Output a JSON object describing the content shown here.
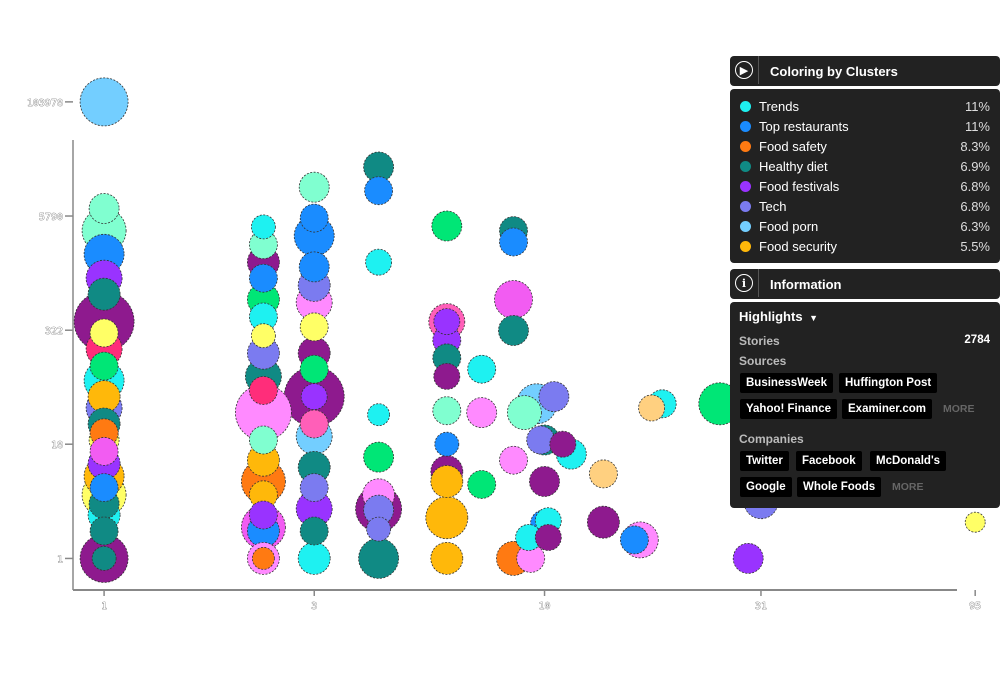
{
  "legend_panel": {
    "title": "Coloring by Clusters",
    "items": [
      {
        "label": "Trends",
        "pct": "11%",
        "color": "#1ef1f1"
      },
      {
        "label": "Top restaurants",
        "pct": "11%",
        "color": "#1a8cff"
      },
      {
        "label": "Food safety",
        "pct": "8.3%",
        "color": "#ff7a12"
      },
      {
        "label": "Healthy diet",
        "pct": "6.9%",
        "color": "#108a84"
      },
      {
        "label": "Food festivals",
        "pct": "6.8%",
        "color": "#9933ff"
      },
      {
        "label": "Tech",
        "pct": "6.8%",
        "color": "#7b7bf0"
      },
      {
        "label": "Food porn",
        "pct": "6.3%",
        "color": "#73ceff"
      },
      {
        "label": "Food security",
        "pct": "5.5%",
        "color": "#ffb80a"
      }
    ]
  },
  "info_panel": {
    "title": "Information",
    "highlights_label": "Highlights",
    "stories_label": "Stories",
    "stories_count": "2784",
    "sources_label": "Sources",
    "sources": [
      "BusinessWeek",
      "Huffington Post",
      "Yahoo! Finance",
      "Examiner.com"
    ],
    "sources_more": "MORE",
    "companies_label": "Companies",
    "companies": [
      "Twitter",
      "Facebook",
      "McDonald's",
      "Google",
      "Whole Foods"
    ],
    "companies_more": "MORE"
  },
  "chart_data": {
    "type": "scatter",
    "title": "",
    "xlabel": "",
    "ylabel": "",
    "x_scale": "log",
    "y_scale": "log",
    "x_ticks": [
      "1",
      "3",
      "10",
      "31",
      "95"
    ],
    "y_ticks": [
      "1",
      "18",
      "322",
      "5790",
      "103978"
    ],
    "xlim": [
      0.85,
      100
    ],
    "ylim": [
      0.45,
      300000
    ],
    "extra_colors": [
      "#8e1a8e",
      "#ff5fb8",
      "#00e676",
      "#f25cf2",
      "#ff8aff",
      "#ff2d7a",
      "#80ffd0",
      "#ffff66",
      "#ffd080"
    ],
    "points": [
      {
        "x": 1,
        "y": 103978,
        "size": 24,
        "c": "#73ceff"
      },
      {
        "x": 1,
        "y": 7000,
        "size": 15,
        "c": "#80ffd0"
      },
      {
        "x": 1,
        "y": 4000,
        "size": 22,
        "c": "#80ffd0"
      },
      {
        "x": 1,
        "y": 2200,
        "size": 20,
        "c": "#1a8cff"
      },
      {
        "x": 1,
        "y": 1200,
        "size": 18,
        "c": "#9933ff"
      },
      {
        "x": 1,
        "y": 800,
        "size": 16,
        "c": "#108a84"
      },
      {
        "x": 1,
        "y": 400,
        "size": 30,
        "c": "#8e1a8e"
      },
      {
        "x": 1,
        "y": 300,
        "size": 14,
        "c": "#ffff66"
      },
      {
        "x": 1,
        "y": 200,
        "size": 18,
        "c": "#ff2d7a"
      },
      {
        "x": 1,
        "y": 130,
        "size": 14,
        "c": "#00e676"
      },
      {
        "x": 1,
        "y": 90,
        "size": 20,
        "c": "#1ef1f1"
      },
      {
        "x": 1,
        "y": 60,
        "size": 16,
        "c": "#ffb80a"
      },
      {
        "x": 1,
        "y": 45,
        "size": 18,
        "c": "#7b7bf0"
      },
      {
        "x": 1,
        "y": 30,
        "size": 16,
        "c": "#108a84"
      },
      {
        "x": 1,
        "y": 24,
        "size": 14,
        "c": "#ff7a12"
      },
      {
        "x": 1,
        "y": 20,
        "size": 15,
        "c": "#ffff66"
      },
      {
        "x": 1,
        "y": 15,
        "size": 14,
        "c": "#f25cf2"
      },
      {
        "x": 1,
        "y": 11,
        "size": 16,
        "c": "#9933ff"
      },
      {
        "x": 1,
        "y": 8,
        "size": 20,
        "c": "#ffb80a"
      },
      {
        "x": 1,
        "y": 6,
        "size": 14,
        "c": "#1a8cff"
      },
      {
        "x": 1,
        "y": 5,
        "size": 22,
        "c": "#ffff66"
      },
      {
        "x": 1,
        "y": 4,
        "size": 15,
        "c": "#108a84"
      },
      {
        "x": 1,
        "y": 3,
        "size": 16,
        "c": "#1ef1f1"
      },
      {
        "x": 1,
        "y": 2,
        "size": 14,
        "c": "#108a84"
      },
      {
        "x": 1,
        "y": 1,
        "size": 24,
        "c": "#8e1a8e"
      },
      {
        "x": 1,
        "y": 1,
        "size": 12,
        "c": "#108a84"
      },
      {
        "x": 2.3,
        "y": 4400,
        "size": 12,
        "c": "#1ef1f1"
      },
      {
        "x": 2.3,
        "y": 2800,
        "size": 14,
        "c": "#80ffd0"
      },
      {
        "x": 2.3,
        "y": 1800,
        "size": 16,
        "c": "#8e1a8e"
      },
      {
        "x": 2.3,
        "y": 1200,
        "size": 14,
        "c": "#1a8cff"
      },
      {
        "x": 2.3,
        "y": 700,
        "size": 16,
        "c": "#00e676"
      },
      {
        "x": 2.3,
        "y": 450,
        "size": 14,
        "c": "#1ef1f1"
      },
      {
        "x": 2.3,
        "y": 280,
        "size": 12,
        "c": "#ffff66"
      },
      {
        "x": 2.3,
        "y": 180,
        "size": 16,
        "c": "#7b7bf0"
      },
      {
        "x": 2.3,
        "y": 100,
        "size": 18,
        "c": "#108a84"
      },
      {
        "x": 2.3,
        "y": 70,
        "size": 14,
        "c": "#ff2d7a"
      },
      {
        "x": 2.3,
        "y": 40,
        "size": 28,
        "c": "#ff8aff"
      },
      {
        "x": 2.3,
        "y": 20,
        "size": 14,
        "c": "#80ffd0"
      },
      {
        "x": 2.3,
        "y": 12,
        "size": 16,
        "c": "#ffb80a"
      },
      {
        "x": 2.3,
        "y": 7,
        "size": 22,
        "c": "#ff7a12"
      },
      {
        "x": 2.3,
        "y": 5,
        "size": 14,
        "c": "#ffb80a"
      },
      {
        "x": 2.3,
        "y": 3,
        "size": 14,
        "c": "#9933ff"
      },
      {
        "x": 2.3,
        "y": 2.2,
        "size": 22,
        "c": "#f25cf2"
      },
      {
        "x": 2.3,
        "y": 2,
        "size": 16,
        "c": "#1a8cff"
      },
      {
        "x": 2.3,
        "y": 1,
        "size": 16,
        "c": "#ff8aff"
      },
      {
        "x": 2.3,
        "y": 1,
        "size": 11,
        "c": "#ff7a12"
      },
      {
        "x": 3,
        "y": 12000,
        "size": 15,
        "c": "#80ffd0"
      },
      {
        "x": 3,
        "y": 5500,
        "size": 14,
        "c": "#1a8cff"
      },
      {
        "x": 3,
        "y": 3500,
        "size": 20,
        "c": "#1a8cff"
      },
      {
        "x": 3,
        "y": 1600,
        "size": 15,
        "c": "#1a8cff"
      },
      {
        "x": 3,
        "y": 1000,
        "size": 16,
        "c": "#7b7bf0"
      },
      {
        "x": 3,
        "y": 650,
        "size": 18,
        "c": "#ff8aff"
      },
      {
        "x": 3,
        "y": 350,
        "size": 14,
        "c": "#ffff66"
      },
      {
        "x": 3,
        "y": 180,
        "size": 16,
        "c": "#8e1a8e"
      },
      {
        "x": 3,
        "y": 120,
        "size": 14,
        "c": "#00e676"
      },
      {
        "x": 3,
        "y": 60,
        "size": 30,
        "c": "#8e1a8e"
      },
      {
        "x": 3,
        "y": 60,
        "size": 13,
        "c": "#9933ff"
      },
      {
        "x": 3,
        "y": 30,
        "size": 14,
        "c": "#ff5fb8"
      },
      {
        "x": 3,
        "y": 22,
        "size": 18,
        "c": "#73ceff"
      },
      {
        "x": 3,
        "y": 10,
        "size": 16,
        "c": "#108a84"
      },
      {
        "x": 3,
        "y": 6,
        "size": 14,
        "c": "#7b7bf0"
      },
      {
        "x": 3,
        "y": 3.5,
        "size": 18,
        "c": "#9933ff"
      },
      {
        "x": 3,
        "y": 2,
        "size": 14,
        "c": "#108a84"
      },
      {
        "x": 3,
        "y": 1,
        "size": 16,
        "c": "#1ef1f1"
      },
      {
        "x": 4.2,
        "y": 20000,
        "size": 15,
        "c": "#108a84"
      },
      {
        "x": 4.2,
        "y": 11000,
        "size": 14,
        "c": "#1a8cff"
      },
      {
        "x": 4.2,
        "y": 1800,
        "size": 13,
        "c": "#1ef1f1"
      },
      {
        "x": 4.2,
        "y": 38,
        "size": 11,
        "c": "#1ef1f1"
      },
      {
        "x": 4.2,
        "y": 13,
        "size": 15,
        "c": "#00e676"
      },
      {
        "x": 4.2,
        "y": 5,
        "size": 16,
        "c": "#ff8aff"
      },
      {
        "x": 4.2,
        "y": 3.5,
        "size": 23,
        "c": "#8e1a8e"
      },
      {
        "x": 4.2,
        "y": 3.4,
        "size": 15,
        "c": "#7b7bf0"
      },
      {
        "x": 4.2,
        "y": 2.1,
        "size": 12,
        "c": "#7b7bf0"
      },
      {
        "x": 4.2,
        "y": 1,
        "size": 20,
        "c": "#108a84"
      },
      {
        "x": 6,
        "y": 4500,
        "size": 15,
        "c": "#00e676"
      },
      {
        "x": 6,
        "y": 400,
        "size": 18,
        "c": "#ff5fb8"
      },
      {
        "x": 6,
        "y": 400,
        "size": 13,
        "c": "#9933ff"
      },
      {
        "x": 6,
        "y": 250,
        "size": 14,
        "c": "#9933ff"
      },
      {
        "x": 6,
        "y": 160,
        "size": 14,
        "c": "#108a84"
      },
      {
        "x": 6,
        "y": 100,
        "size": 13,
        "c": "#8e1a8e"
      },
      {
        "x": 6,
        "y": 42,
        "size": 14,
        "c": "#80ffd0"
      },
      {
        "x": 6,
        "y": 18,
        "size": 12,
        "c": "#1a8cff"
      },
      {
        "x": 6,
        "y": 9,
        "size": 16,
        "c": "#8e1a8e"
      },
      {
        "x": 6,
        "y": 7,
        "size": 16,
        "c": "#ffb80a"
      },
      {
        "x": 6,
        "y": 2.8,
        "size": 21,
        "c": "#ffb80a"
      },
      {
        "x": 6,
        "y": 1,
        "size": 16,
        "c": "#ffb80a"
      },
      {
        "x": 7.2,
        "y": 120,
        "size": 14,
        "c": "#1ef1f1"
      },
      {
        "x": 7.2,
        "y": 40,
        "size": 15,
        "c": "#ff8aff"
      },
      {
        "x": 7.2,
        "y": 6.5,
        "size": 14,
        "c": "#00e676"
      },
      {
        "x": 8.5,
        "y": 4000,
        "size": 14,
        "c": "#108a84"
      },
      {
        "x": 8.5,
        "y": 3000,
        "size": 14,
        "c": "#1a8cff"
      },
      {
        "x": 8.5,
        "y": 700,
        "size": 19,
        "c": "#f25cf2"
      },
      {
        "x": 8.5,
        "y": 320,
        "size": 15,
        "c": "#108a84"
      },
      {
        "x": 8.5,
        "y": 12,
        "size": 14,
        "c": "#ff8aff"
      },
      {
        "x": 8.5,
        "y": 1,
        "size": 17,
        "c": "#ff7a12"
      },
      {
        "x": 9,
        "y": 40,
        "size": 17,
        "c": "#80ffd0"
      },
      {
        "x": 9.2,
        "y": 1.7,
        "size": 13,
        "c": "#1ef1f1"
      },
      {
        "x": 9.3,
        "y": 1,
        "size": 14,
        "c": "#ff8aff"
      },
      {
        "x": 9.6,
        "y": 50,
        "size": 20,
        "c": "#73ceff"
      },
      {
        "x": 9.8,
        "y": 20,
        "size": 14,
        "c": "#7b7bf0"
      },
      {
        "x": 10,
        "y": 20,
        "size": 15,
        "c": "#108a84"
      },
      {
        "x": 10.5,
        "y": 60,
        "size": 15,
        "c": "#7b7bf0"
      },
      {
        "x": 10,
        "y": 7,
        "size": 15,
        "c": "#8e1a8e"
      },
      {
        "x": 10,
        "y": 2.4,
        "size": 14,
        "c": "#1a8cff"
      },
      {
        "x": 10.2,
        "y": 2.6,
        "size": 13,
        "c": "#1ef1f1"
      },
      {
        "x": 10.2,
        "y": 1.7,
        "size": 13,
        "c": "#8e1a8e"
      },
      {
        "x": 11,
        "y": 18,
        "size": 13,
        "c": "#8e1a8e"
      },
      {
        "x": 11.5,
        "y": 14,
        "size": 15,
        "c": "#1ef1f1"
      },
      {
        "x": 13.6,
        "y": 8.5,
        "size": 14,
        "c": "#ffd080"
      },
      {
        "x": 13.6,
        "y": 2.5,
        "size": 16,
        "c": "#8e1a8e"
      },
      {
        "x": 16,
        "y": 1.6,
        "size": 14,
        "c": "#1a8cff"
      },
      {
        "x": 16.5,
        "y": 1.6,
        "size": 18,
        "c": "#ff8aff"
      },
      {
        "x": 17.5,
        "y": 45,
        "size": 13,
        "c": "#ffd080"
      },
      {
        "x": 18.5,
        "y": 50,
        "size": 14,
        "c": "#1ef1f1"
      },
      {
        "x": 25,
        "y": 50,
        "size": 21,
        "c": "#00e676"
      },
      {
        "x": 29,
        "y": 1,
        "size": 15,
        "c": "#9933ff"
      },
      {
        "x": 31,
        "y": 120,
        "size": 14,
        "c": "#1ef1f1"
      },
      {
        "x": 31,
        "y": 4.2,
        "size": 17,
        "c": "#7b7bf0"
      },
      {
        "x": 95,
        "y": 2.5,
        "size": 10,
        "c": "#ffff66"
      }
    ]
  }
}
